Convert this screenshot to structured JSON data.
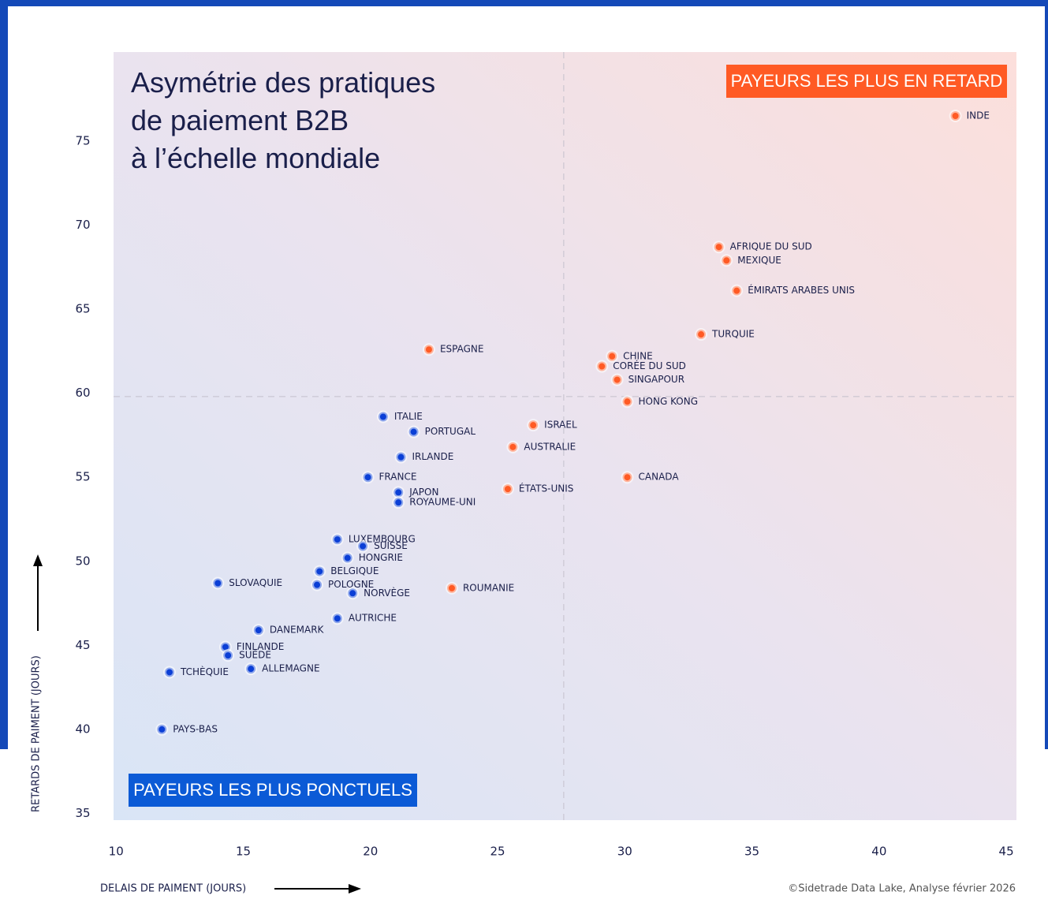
{
  "chart_data": {
    "type": "scatter",
    "title": [
      "Asymétrie des pratiques",
      "de paiement B2B",
      "à l’échelle mondiale"
    ],
    "x_label": "DELAIS DE PAIMENT (JOURS)",
    "y_label": "RETARDS DE PAIMENT (JOURS)",
    "source": "©Sidetrade Data Lake, Analyse février 2026",
    "xlim": [
      9.9,
      45.4
    ],
    "ylim": [
      34.6,
      80.3
    ],
    "xticks": [
      10,
      15,
      20,
      25,
      30,
      35,
      40,
      45
    ],
    "yticks": [
      35,
      40,
      45,
      50,
      55,
      60,
      65,
      70,
      75
    ],
    "reference_lines": {
      "x": 27.6,
      "y": 59.8
    },
    "series": [
      {
        "name": "PAYEURS LES PLUS PONCTUELS",
        "color": "#0b3fd6",
        "labels": [
          "ITALIE",
          "PORTUGAL",
          "IRLANDE",
          "FRANCE",
          "JAPON",
          "ROYAUME-UNI",
          "LUXEMBOURG",
          "SUISSE",
          "HONGRIE",
          "BELGIQUE",
          "POLOGNE",
          "NORVÈGE",
          "SLOVAQUIE",
          "AUTRICHE",
          "DANEMARK",
          "FINLANDE",
          "SUÈDE",
          "ALLEMAGNE",
          "TCHÈQUIE",
          "PAYS-BAS"
        ],
        "x": [
          20.5,
          21.7,
          21.2,
          19.9,
          21.1,
          21.1,
          18.7,
          19.7,
          19.1,
          18.0,
          17.9,
          19.3,
          14.0,
          18.7,
          15.6,
          14.3,
          14.4,
          15.3,
          12.1,
          11.8
        ],
        "values": [
          58.6,
          57.7,
          56.2,
          55.0,
          54.1,
          53.5,
          51.3,
          50.9,
          50.2,
          49.4,
          48.6,
          48.1,
          48.7,
          46.6,
          45.9,
          44.9,
          44.4,
          43.6,
          43.4,
          40.0
        ]
      },
      {
        "name": "PAYEURS LES PLUS EN RETARD",
        "color": "#ff5a24",
        "labels": [
          "INDE",
          "AFRIQUE DU SUD",
          "MEXIQUE",
          "ÉMIRATS ARABES UNIS",
          "TURQUIE",
          "ESPAGNE",
          "CHINE",
          "CORÉE DU SUD",
          "SINGAPOUR",
          "HONG KONG",
          "ISRAEL",
          "AUSTRALIE",
          "CANADA",
          "ÉTATS-UNIS",
          "ROUMANIE"
        ],
        "x": [
          43.0,
          33.7,
          34.0,
          34.4,
          33.0,
          22.3,
          29.5,
          29.1,
          29.7,
          30.1,
          26.4,
          25.6,
          30.1,
          25.4,
          23.2
        ],
        "values": [
          76.5,
          68.7,
          67.9,
          66.1,
          63.5,
          62.6,
          62.2,
          61.6,
          60.8,
          59.5,
          58.1,
          56.8,
          55.0,
          54.3,
          48.4
        ]
      }
    ]
  }
}
